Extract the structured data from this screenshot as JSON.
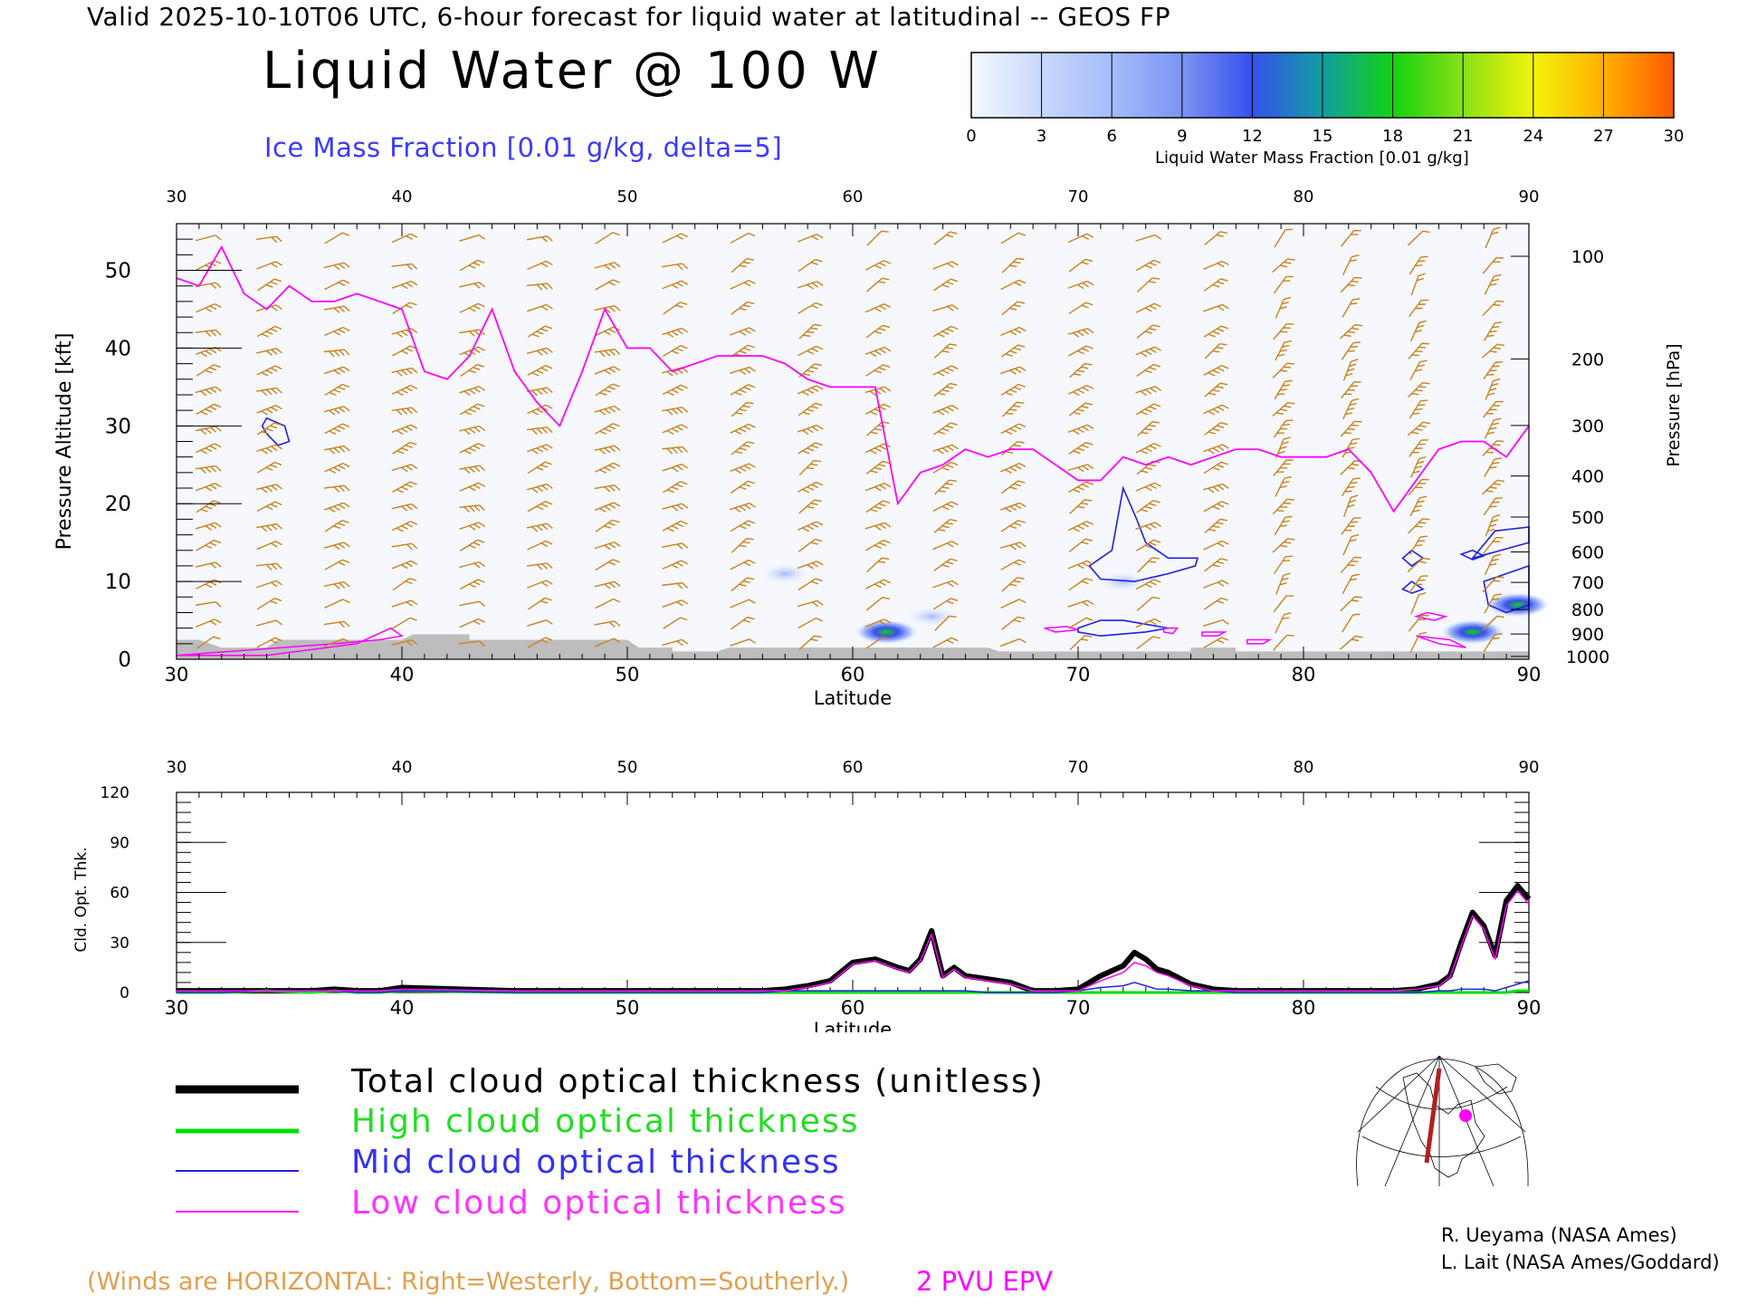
{
  "header": {
    "valid_line": "Valid 2025-10-10T06 UTC, 6-hour forecast for liquid water at latitudinal -- GEOS FP",
    "title": "Liquid Water @ 100 W",
    "ice_label": "Ice Mass Fraction [0.01 g/kg, delta=5]"
  },
  "colorbar": {
    "label": "Liquid Water Mass Fraction [0.01 g/kg]",
    "ticks": [
      "0",
      "3",
      "6",
      "9",
      "12",
      "15",
      "18",
      "21",
      "24",
      "27",
      "30"
    ],
    "colors": [
      "#f6f8fe",
      "#c8d8fc",
      "#a5bcfa",
      "#7c94f2",
      "#3650ee",
      "#119ea0",
      "#12d212",
      "#8ae018",
      "#f3f30a",
      "#ffb000",
      "#ff5a00"
    ]
  },
  "top_panel": {
    "xlabel": "Latitude",
    "ylabel_left": "Pressure Altitude [kft]",
    "ylabel_right": "Pressure [hPa]",
    "x_ticks": [
      "30",
      "40",
      "50",
      "60",
      "70",
      "80",
      "90"
    ],
    "y_ticks_left": [
      "0",
      "10",
      "20",
      "30",
      "40",
      "50"
    ],
    "y_ticks_right": [
      "100",
      "200",
      "300",
      "400",
      "500",
      "600",
      "700",
      "800",
      "900",
      "1000"
    ],
    "colors": {
      "barb": "#c8821e",
      "tropopause": "#ff00ff",
      "ice": "#2020e0",
      "terrain": "#bdbdbd"
    }
  },
  "bottom_panel": {
    "xlabel": "Latitude",
    "ylabel": "Cld. Opt. Thk.",
    "x_ticks": [
      "30",
      "40",
      "50",
      "60",
      "70",
      "80",
      "90"
    ],
    "y_ticks": [
      "0",
      "30",
      "60",
      "90",
      "120"
    ]
  },
  "legend": [
    {
      "label": "Total cloud optical thickness (unitless)",
      "color": "#000000"
    },
    {
      "label": "High cloud optical thickness",
      "color": "#00dd00"
    },
    {
      "label": "Mid cloud optical thickness",
      "color": "#2222dd"
    },
    {
      "label": "Low cloud optical thickness",
      "color": "#ff00ff"
    }
  ],
  "footer": {
    "winds_note": "(Winds are HORIZONTAL: Right=Westerly, Bottom=Southerly.)",
    "pvu_label": "2 PVU EPV",
    "credit_1": "R. Ueyama (NASA Ames)",
    "credit_2": "L. Lait (NASA Ames/Goddard)"
  },
  "chart_data": [
    {
      "type": "heatmap",
      "title": "Liquid Water @ 100 W",
      "xlabel": "Latitude",
      "ylabel": "Pressure Altitude [kft]",
      "xlim": [
        30,
        90
      ],
      "ylim": [
        0,
        56
      ],
      "tropopause_2pvu_kft": {
        "x": [
          30,
          31,
          32,
          33,
          34,
          35,
          36,
          37,
          38,
          39,
          40,
          41,
          42,
          43,
          44,
          45,
          46,
          47,
          48,
          49,
          50,
          51,
          52,
          53,
          54,
          55,
          56,
          57,
          58,
          59,
          60,
          61,
          62,
          63,
          64,
          65,
          66,
          67,
          68,
          69,
          70,
          71,
          72,
          73,
          74,
          75,
          76,
          77,
          78,
          79,
          80,
          81,
          82,
          83,
          84,
          85,
          86,
          87,
          88,
          89,
          90
        ],
        "y": [
          49,
          48,
          53,
          47,
          45,
          48,
          46,
          46,
          47,
          46,
          45,
          37,
          36,
          39,
          45,
          37,
          33,
          30,
          37,
          45,
          40,
          40,
          37,
          38,
          39,
          39,
          39,
          38,
          36,
          35,
          35,
          35,
          20,
          24,
          25,
          27,
          26,
          27,
          27,
          25,
          23,
          23,
          26,
          25,
          26,
          25,
          26,
          27,
          27,
          26,
          26,
          26,
          27,
          24,
          19,
          23,
          27,
          28,
          28,
          26,
          30
        ]
      },
      "liquid_water_maxima": [
        {
          "lat": 61.5,
          "kft": 3.5,
          "value": 18
        },
        {
          "lat": 63.5,
          "kft": 5.5,
          "value": 6
        },
        {
          "lat": 72.0,
          "kft": 10.0,
          "value": 3
        },
        {
          "lat": 87.5,
          "kft": 3.5,
          "value": 20
        },
        {
          "lat": 89.5,
          "kft": 7.0,
          "value": 16
        },
        {
          "lat": 57.0,
          "kft": 11.0,
          "value": 3
        }
      ]
    },
    {
      "type": "line",
      "xlabel": "Latitude",
      "ylabel": "Cld. Opt. Thk.",
      "xlim": [
        30,
        90
      ],
      "ylim": [
        0,
        120
      ],
      "x": [
        30,
        32,
        34,
        36,
        37,
        38,
        39,
        40,
        45,
        50,
        55,
        56,
        57,
        58,
        59,
        60,
        61,
        62,
        62.5,
        63,
        63.5,
        64,
        64.5,
        65,
        66,
        67,
        68,
        69,
        70,
        71,
        72,
        72.5,
        73,
        73.5,
        74,
        75,
        76,
        77,
        78,
        80,
        84,
        85,
        86,
        86.5,
        87,
        87.5,
        88,
        88.5,
        89,
        89.5,
        90
      ],
      "series": [
        {
          "name": "Total cloud optical thickness (unitless)",
          "values": [
            1,
            1,
            1,
            1,
            2,
            1,
            1,
            3,
            1,
            1,
            1,
            1,
            2,
            4,
            7,
            18,
            20,
            15,
            13,
            20,
            37,
            10,
            15,
            10,
            8,
            6,
            1,
            1,
            2,
            10,
            16,
            24,
            20,
            14,
            12,
            5,
            2,
            1,
            1,
            1,
            1,
            2,
            5,
            10,
            30,
            48,
            40,
            22,
            55,
            64,
            56
          ]
        },
        {
          "name": "High cloud optical thickness",
          "values": [
            0,
            0,
            1,
            0,
            1,
            0,
            0,
            1,
            0,
            0,
            0,
            0,
            0,
            0,
            0,
            0,
            0,
            0,
            0,
            0,
            0,
            0,
            0,
            0,
            0,
            0,
            0,
            0,
            0,
            0,
            0,
            0,
            0,
            0,
            0,
            0,
            0,
            0,
            0,
            0,
            0,
            0,
            0,
            0,
            0,
            0,
            0,
            0,
            0,
            1,
            1
          ]
        },
        {
          "name": "Mid cloud optical thickness",
          "values": [
            0,
            0,
            1,
            1,
            1,
            0,
            0,
            1,
            0,
            0,
            0,
            0,
            1,
            1,
            1,
            1,
            1,
            1,
            1,
            1,
            1,
            1,
            1,
            1,
            0,
            0,
            0,
            0,
            1,
            3,
            4,
            6,
            4,
            2,
            2,
            1,
            1,
            0,
            0,
            0,
            0,
            0,
            1,
            1,
            2,
            2,
            2,
            1,
            3,
            5,
            7
          ]
        },
        {
          "name": "Low cloud optical thickness",
          "values": [
            1,
            1,
            1,
            1,
            1,
            1,
            1,
            2,
            1,
            1,
            1,
            1,
            1,
            3,
            6,
            17,
            19,
            14,
            12,
            19,
            35,
            9,
            14,
            9,
            7,
            5,
            1,
            1,
            1,
            7,
            12,
            18,
            16,
            12,
            10,
            4,
            1,
            1,
            1,
            1,
            1,
            2,
            4,
            9,
            28,
            46,
            38,
            20,
            52,
            61,
            53
          ]
        }
      ]
    }
  ]
}
